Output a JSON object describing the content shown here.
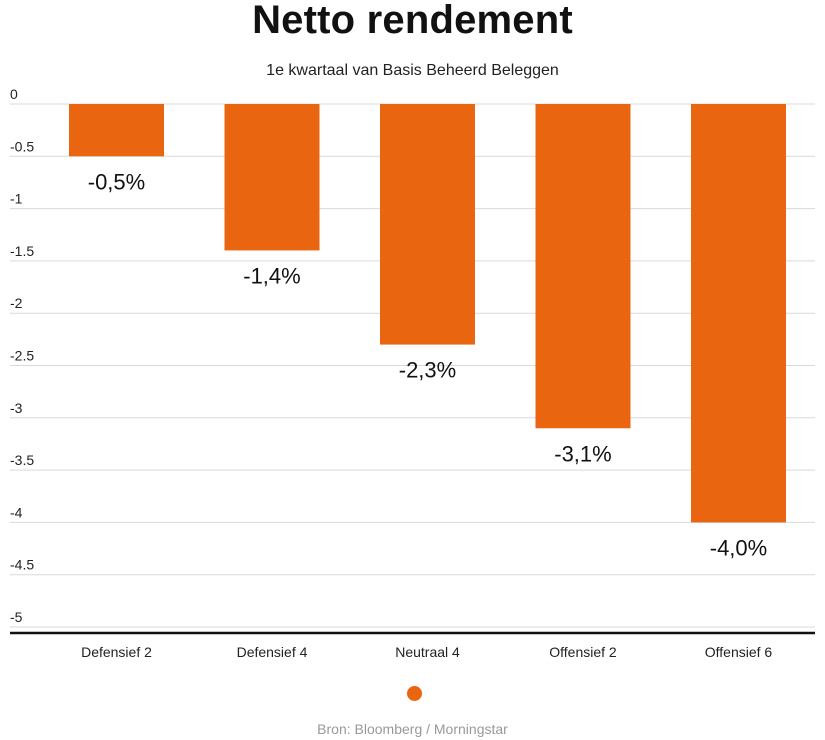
{
  "chart_data": {
    "type": "bar",
    "title": "Netto rendement",
    "subtitle": "1e kwartaal van Basis Beheerd Beleggen",
    "categories": [
      "Defensief 2",
      "Defensief 4",
      "Neutraal 4",
      "Offensief 2",
      "Offensief 6"
    ],
    "values": [
      -0.5,
      -1.4,
      -2.3,
      -3.1,
      -4.0
    ],
    "data_labels": [
      "-0,5%",
      "-1,4%",
      "-2,3%",
      "-3,1%",
      "-4,0%"
    ],
    "yticks": [
      "0",
      "-0.5",
      "-1",
      "-1.5",
      "-2",
      "-2.5",
      "-3",
      "-3.5",
      "-4",
      "-4.5",
      "-5"
    ],
    "ytick_values": [
      0,
      -0.5,
      -1,
      -1.5,
      -2,
      -2.5,
      -3,
      -3.5,
      -4,
      -4.5,
      -5
    ],
    "ylim": [
      -5,
      0
    ],
    "grid": true,
    "legend": "bottom-center",
    "source": "Bron: Bloomberg / Morningstar",
    "colors": {
      "bar": "#e96510",
      "grid": "#d9d9d9",
      "axis": "#111111"
    }
  }
}
